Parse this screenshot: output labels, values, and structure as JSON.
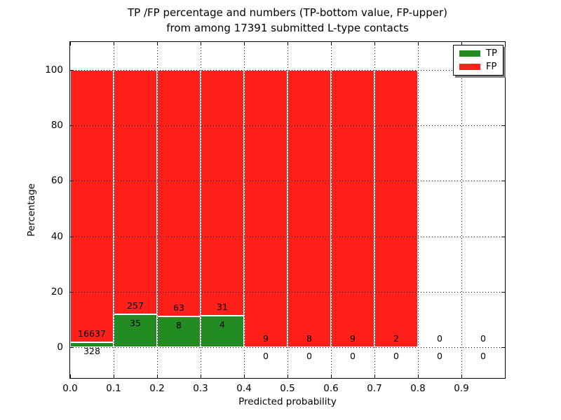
{
  "chart_data": {
    "type": "bar",
    "stacked": true,
    "normalized_to_percent": true,
    "title": [
      "TP /FP percentage and numbers (TP-bottom value, FP-upper)",
      "from among 17391 submitted L-type contacts"
    ],
    "total_submitted_contacts": 17391,
    "contact_type": "L-type",
    "xlabel": "Predicted probability",
    "ylabel": "Percentage",
    "xlim": [
      0.0,
      1.0
    ],
    "ylim": [
      -11,
      110
    ],
    "x_ticks": [
      "0.0",
      "0.1",
      "0.2",
      "0.3",
      "0.4",
      "0.5",
      "0.6",
      "0.7",
      "0.8",
      "0.9"
    ],
    "y_ticks": [
      "0",
      "20",
      "40",
      "60",
      "80",
      "100"
    ],
    "grid": "dotted",
    "bin_width": 0.1,
    "bins": [
      {
        "x_start": 0.0,
        "tp_count": 328,
        "fp_count": 16637,
        "tp_pct": 1.93,
        "fp_pct": 98.07
      },
      {
        "x_start": 0.1,
        "tp_count": 35,
        "fp_count": 257,
        "tp_pct": 11.99,
        "fp_pct": 88.01
      },
      {
        "x_start": 0.2,
        "tp_count": 8,
        "fp_count": 63,
        "tp_pct": 11.27,
        "fp_pct": 88.73
      },
      {
        "x_start": 0.3,
        "tp_count": 4,
        "fp_count": 31,
        "tp_pct": 11.43,
        "fp_pct": 88.57
      },
      {
        "x_start": 0.4,
        "tp_count": 0,
        "fp_count": 9,
        "tp_pct": 0,
        "fp_pct": 100
      },
      {
        "x_start": 0.5,
        "tp_count": 0,
        "fp_count": 8,
        "tp_pct": 0,
        "fp_pct": 100
      },
      {
        "x_start": 0.6,
        "tp_count": 0,
        "fp_count": 9,
        "tp_pct": 0,
        "fp_pct": 100
      },
      {
        "x_start": 0.7,
        "tp_count": 0,
        "fp_count": 2,
        "tp_pct": 0,
        "fp_pct": 100
      },
      {
        "x_start": 0.8,
        "tp_count": 0,
        "fp_count": 0,
        "tp_pct": 0,
        "fp_pct": 0
      },
      {
        "x_start": 0.9,
        "tp_count": 0,
        "fp_count": 0,
        "tp_pct": 0,
        "fp_pct": 0
      }
    ],
    "legend": {
      "position": "upper right",
      "entries": [
        {
          "label": "TP",
          "color": "#228b22"
        },
        {
          "label": "FP",
          "color": "#ff2019"
        }
      ]
    },
    "colors": {
      "tp": "#228b22",
      "fp": "#ff2019",
      "background": "#ffffff",
      "grid": "#000000"
    }
  }
}
